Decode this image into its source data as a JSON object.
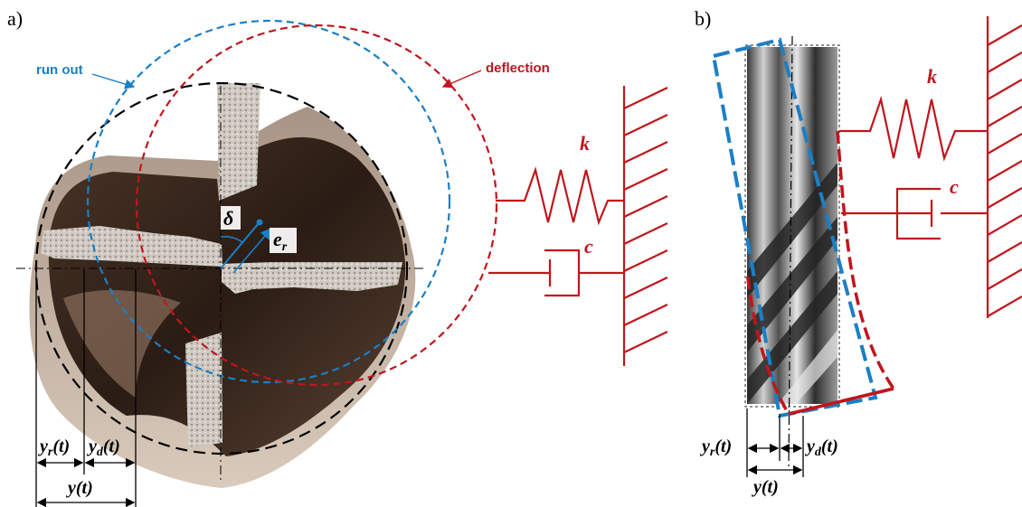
{
  "colors": {
    "runout": "#1b7fc4",
    "deflection": "#c0161c",
    "black": "#000000",
    "tool_dark": "#2a1c14",
    "tool_mid": "#6b4e3d",
    "tool_light": "#c9b8a8",
    "edge_silver": "#d8d4cf"
  },
  "panel_a": {
    "label": "a)",
    "runout_label": "run out",
    "deflection_label": "deflection",
    "k_label": "k",
    "c_label": "c",
    "delta_label": "δ",
    "er_main": "e",
    "er_sub": "r",
    "yr_main": "y",
    "yr_sub": "r",
    "yr_tail": "(t)",
    "yd_main": "y",
    "yd_sub": "d",
    "yd_tail": "(t)",
    "y_label": "y(t)"
  },
  "panel_b": {
    "label": "b)",
    "k_label": "k",
    "c_label": "c",
    "yr_main": "y",
    "yr_sub": "r",
    "yr_tail": "(t)",
    "yd_main": "y",
    "yd_sub": "d",
    "yd_tail": "(t)",
    "y_label": "y(t)"
  }
}
